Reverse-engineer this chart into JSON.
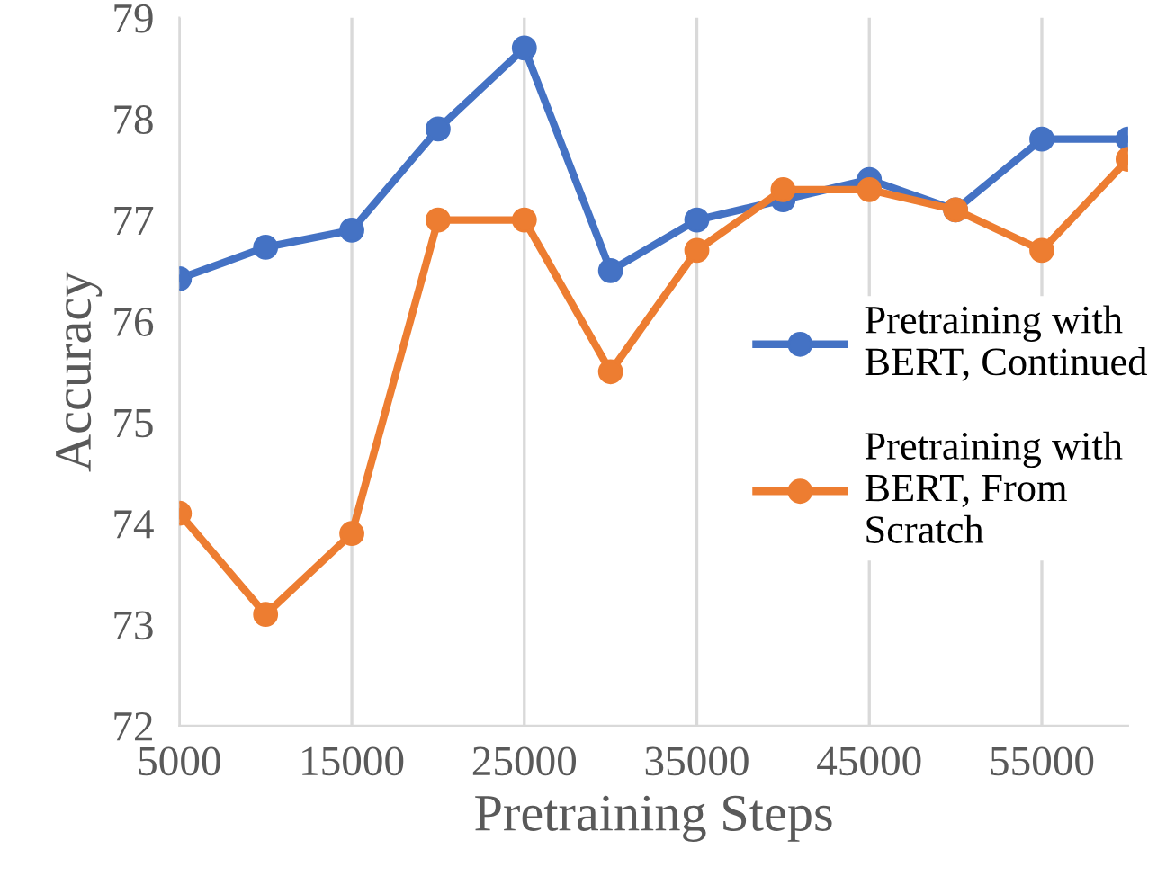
{
  "chart_data": {
    "type": "line",
    "xlabel": "Pretraining Steps",
    "ylabel": "Accuracy",
    "x": [
      5000,
      10000,
      15000,
      20000,
      25000,
      30000,
      35000,
      40000,
      45000,
      50000,
      55000,
      60000
    ],
    "series": [
      {
        "name": "Pretraining with BERT, Continued",
        "color": "#4472c4",
        "values": [
          76.42,
          76.73,
          76.9,
          77.9,
          78.7,
          76.5,
          77.0,
          77.2,
          77.4,
          77.1,
          77.8,
          77.8
        ]
      },
      {
        "name": "Pretraining with BERT, From Scratch",
        "color": "#ed7d31",
        "values": [
          74.1,
          73.1,
          73.9,
          77.0,
          77.0,
          75.5,
          76.7,
          77.3,
          77.3,
          77.1,
          76.7,
          77.6
        ]
      }
    ],
    "xlim": [
      5000,
      60000
    ],
    "xticks": [
      5000,
      15000,
      25000,
      35000,
      45000,
      55000
    ],
    "ylim": [
      72,
      79
    ],
    "yticks": [
      72,
      73,
      74,
      75,
      76,
      77,
      78,
      79
    ],
    "grid": "x",
    "legend": "right",
    "marker": "circle",
    "line_style": "solid"
  }
}
